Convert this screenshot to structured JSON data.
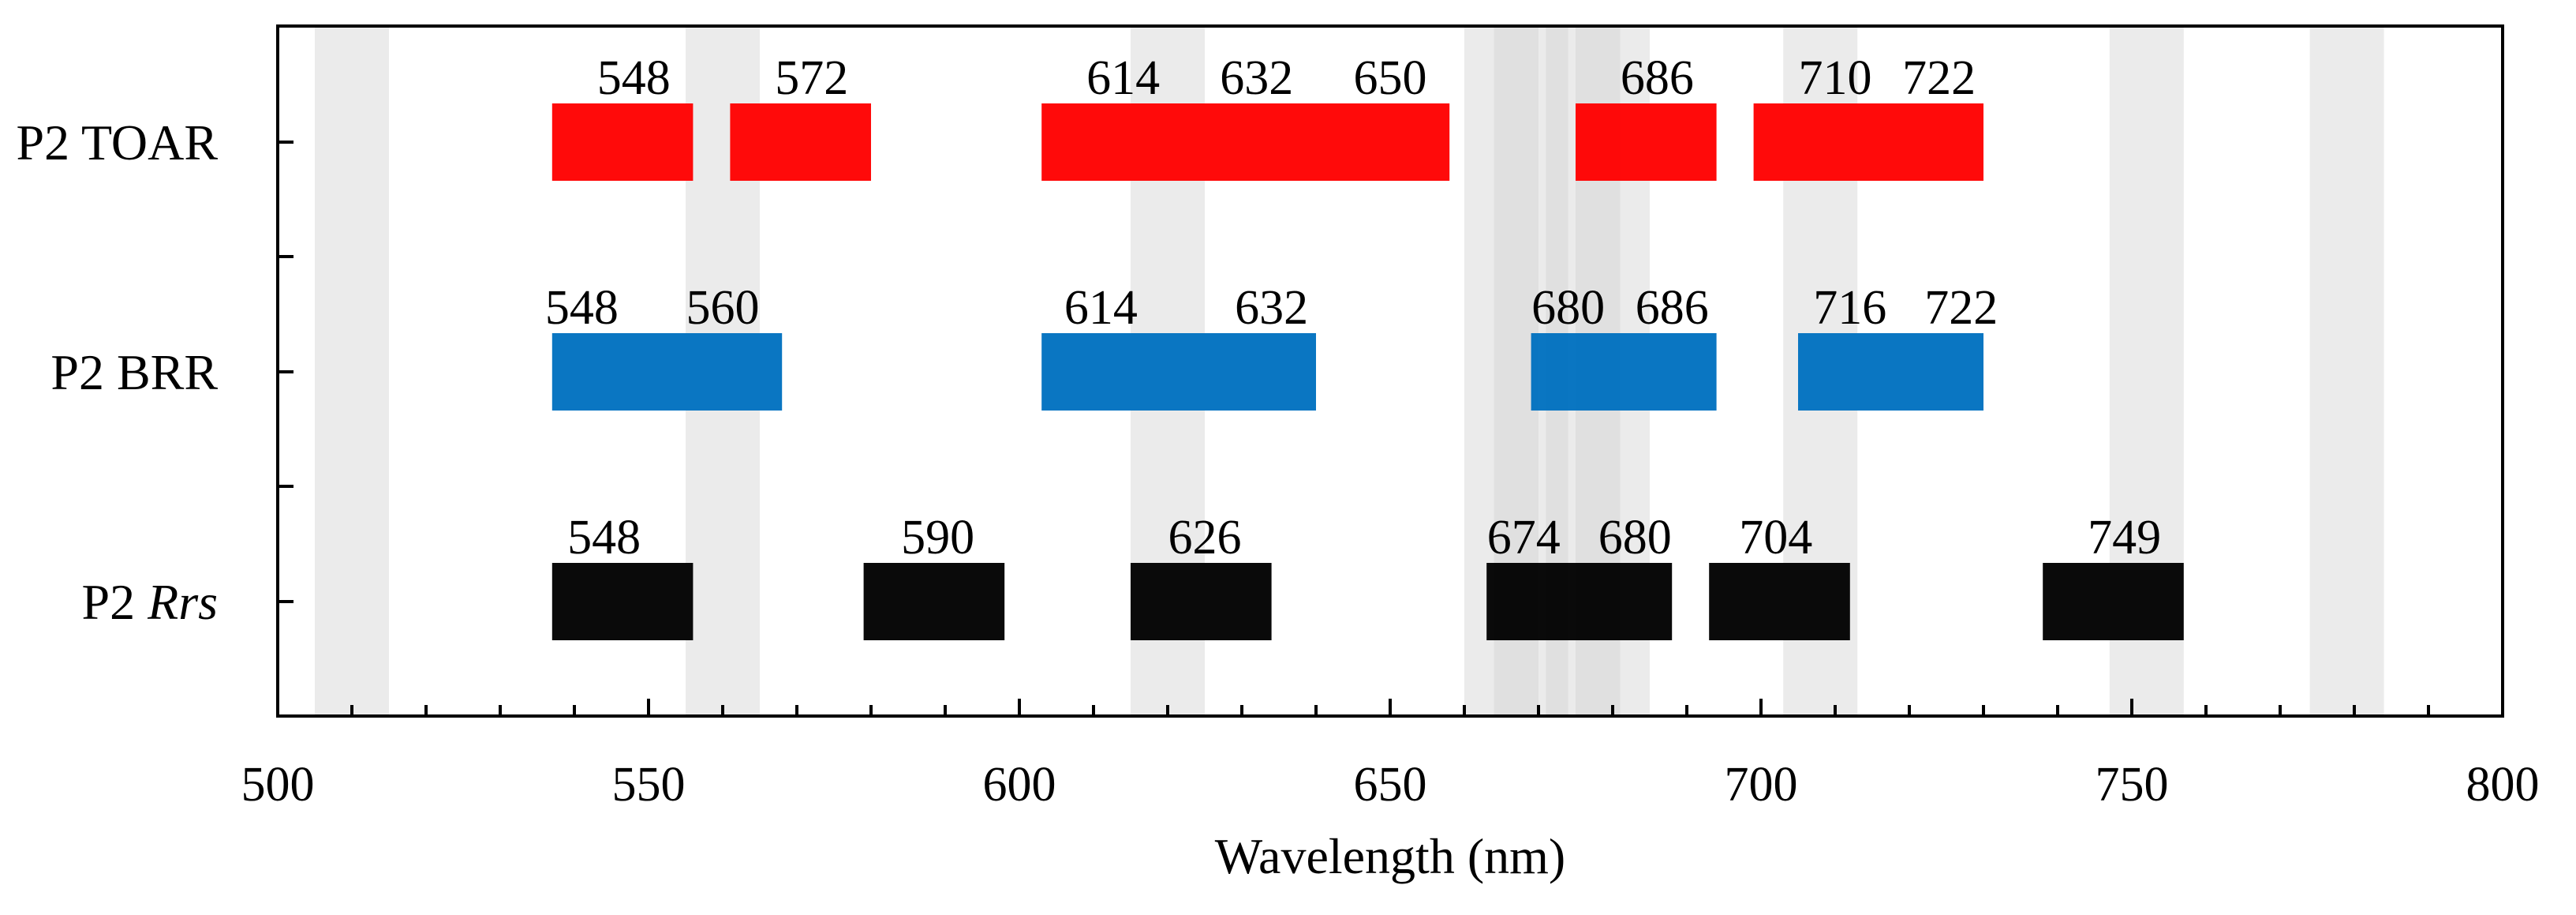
{
  "chart_data": {
    "type": "bar",
    "title": "",
    "xlabel": "Wavelength (nm)",
    "ylabel": "",
    "xlim": [
      500,
      800
    ],
    "x_ticks": [
      500,
      550,
      600,
      650,
      700,
      750,
      800
    ],
    "x_minor_step": 10,
    "grid": false,
    "band_width_nm": 10,
    "shaded_bands": [
      510,
      560,
      620,
      665,
      669,
      676,
      680,
      708,
      752,
      779
    ],
    "shade_color": "#d3d3d3",
    "series": [
      {
        "name": "P2 TOAR",
        "name_prefix": "P2 TOAR",
        "name_italic": "",
        "color": "#ff0000",
        "segments": [
          {
            "start": 537,
            "end": 556
          },
          {
            "start": 561,
            "end": 580
          },
          {
            "start": 603,
            "end": 658
          },
          {
            "start": 675,
            "end": 694
          },
          {
            "start": 699,
            "end": 730
          }
        ],
        "labels": [
          {
            "text": "548",
            "x": 548
          },
          {
            "text": "572",
            "x": 572
          },
          {
            "text": "614",
            "x": 614
          },
          {
            "text": "632",
            "x": 632
          },
          {
            "text": "650",
            "x": 650
          },
          {
            "text": "686",
            "x": 686
          },
          {
            "text": "710",
            "x": 710
          },
          {
            "text": "722",
            "x": 724
          }
        ]
      },
      {
        "name": "P2 BRR",
        "name_prefix": "P2 BRR",
        "name_italic": "",
        "color": "#0070c0",
        "segments": [
          {
            "start": 537,
            "end": 568
          },
          {
            "start": 603,
            "end": 640
          },
          {
            "start": 669,
            "end": 694
          },
          {
            "start": 705,
            "end": 730
          }
        ],
        "labels": [
          {
            "text": "548",
            "x": 541
          },
          {
            "text": "560",
            "x": 560
          },
          {
            "text": "614",
            "x": 611
          },
          {
            "text": "632",
            "x": 634
          },
          {
            "text": "680",
            "x": 674
          },
          {
            "text": "686",
            "x": 688
          },
          {
            "text": "716",
            "x": 712
          },
          {
            "text": "722",
            "x": 727
          }
        ]
      },
      {
        "name": "P2 Rrs",
        "name_prefix": "P2 ",
        "name_italic": "Rrs",
        "color": "#000000",
        "segments": [
          {
            "start": 537,
            "end": 556
          },
          {
            "start": 579,
            "end": 598
          },
          {
            "start": 615,
            "end": 634
          },
          {
            "start": 663,
            "end": 688
          },
          {
            "start": 693,
            "end": 712
          },
          {
            "start": 738,
            "end": 757
          }
        ],
        "labels": [
          {
            "text": "548",
            "x": 544
          },
          {
            "text": "590",
            "x": 589
          },
          {
            "text": "626",
            "x": 625
          },
          {
            "text": "674",
            "x": 668
          },
          {
            "text": "680",
            "x": 683
          },
          {
            "text": "704",
            "x": 702
          },
          {
            "text": "749",
            "x": 749
          }
        ]
      }
    ]
  }
}
